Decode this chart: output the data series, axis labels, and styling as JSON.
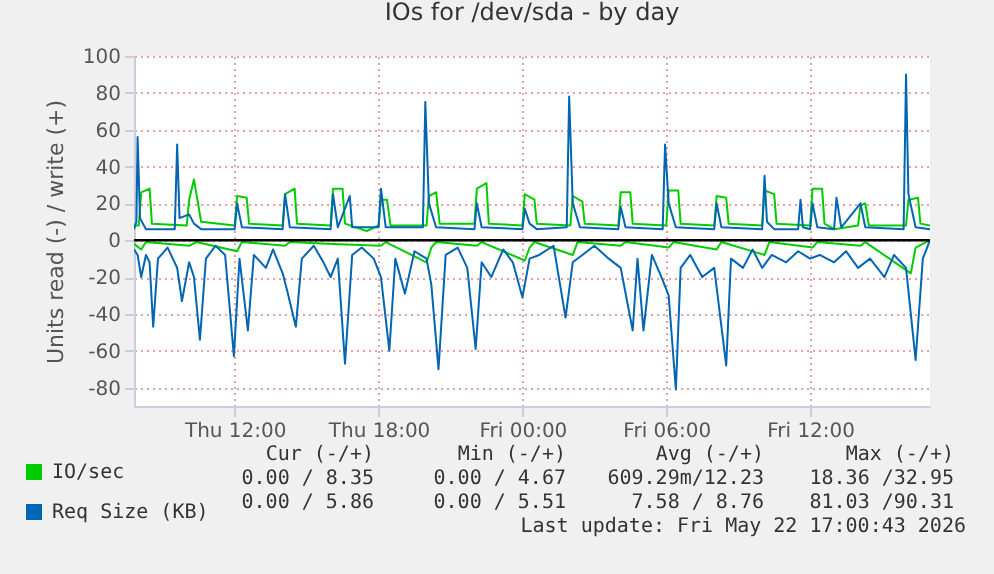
{
  "chart_data": {
    "type": "line",
    "title": "IOs for /dev/sda - by day",
    "ylabel": "Units read (-) / write (+)",
    "xlim": [
      "2026-05-21T07:48",
      "2026-05-22T17:00"
    ],
    "xticks": [
      {
        "value": "2026-05-21T12:00",
        "label": "Thu 12:00"
      },
      {
        "value": "2026-05-21T18:00",
        "label": "Thu 18:00"
      },
      {
        "value": "2026-05-22T00:00",
        "label": "Fri 00:00"
      },
      {
        "value": "2026-05-22T06:00",
        "label": "Fri 06:00"
      },
      {
        "value": "2026-05-22T12:00",
        "label": "Fri 12:00"
      }
    ],
    "ylim": [
      -90,
      100
    ],
    "yticks": [
      -80,
      -60,
      -40,
      -20,
      0,
      20,
      40,
      60,
      80,
      100
    ],
    "grid": true,
    "legend": "bottom",
    "ref_lines": [
      {
        "axis": "y",
        "value": 0,
        "color": "#000000"
      }
    ],
    "series": [
      {
        "name": "IO/sec",
        "color": "#00cc00",
        "x": [
          "2026-05-21T07:48",
          "2026-05-21T08:00",
          "2026-05-21T08:06",
          "2026-05-21T08:27",
          "2026-05-21T08:33",
          "2026-05-21T10:00",
          "2026-05-21T10:06",
          "2026-05-21T10:18",
          "2026-05-21T10:36",
          "2026-05-21T12:00",
          "2026-05-21T12:06",
          "2026-05-21T12:30",
          "2026-05-21T12:36",
          "2026-05-21T14:00",
          "2026-05-21T14:06",
          "2026-05-21T14:30",
          "2026-05-21T14:36",
          "2026-05-21T16:00",
          "2026-05-21T16:06",
          "2026-05-21T16:30",
          "2026-05-21T16:36",
          "2026-05-21T17:30",
          "2026-05-21T18:00",
          "2026-05-21T18:06",
          "2026-05-21T18:21",
          "2026-05-21T18:30",
          "2026-05-21T20:00",
          "2026-05-21T20:06",
          "2026-05-21T20:24",
          "2026-05-21T20:33",
          "2026-05-21T22:00",
          "2026-05-21T22:06",
          "2026-05-21T22:30",
          "2026-05-21T22:36",
          "2026-05-22T00:00",
          "2026-05-22T00:06",
          "2026-05-22T00:30",
          "2026-05-22T00:36",
          "2026-05-22T02:00",
          "2026-05-22T02:06",
          "2026-05-22T02:30",
          "2026-05-22T02:36",
          "2026-05-22T04:00",
          "2026-05-22T04:06",
          "2026-05-22T04:30",
          "2026-05-22T04:36",
          "2026-05-22T06:00",
          "2026-05-22T06:06",
          "2026-05-22T06:30",
          "2026-05-22T06:36",
          "2026-05-22T08:00",
          "2026-05-22T08:06",
          "2026-05-22T08:30",
          "2026-05-22T08:36",
          "2026-05-22T10:00",
          "2026-05-22T10:06",
          "2026-05-22T10:30",
          "2026-05-22T10:36",
          "2026-05-22T12:00",
          "2026-05-22T12:06",
          "2026-05-22T12:30",
          "2026-05-22T12:36",
          "2026-05-22T13:00",
          "2026-05-22T14:00",
          "2026-05-22T14:06",
          "2026-05-22T14:18",
          "2026-05-22T14:27",
          "2026-05-22T16:00",
          "2026-05-22T16:06",
          "2026-05-22T16:30",
          "2026-05-22T16:36",
          "2026-05-22T17:00"
        ],
        "values": [
          8,
          8,
          26,
          28,
          9,
          8,
          22,
          33,
          10,
          8,
          24,
          23,
          9,
          8,
          25,
          28,
          9,
          8,
          28,
          28,
          9,
          5,
          8,
          22,
          22,
          8,
          8,
          24,
          26,
          9,
          9,
          28,
          31,
          9,
          8,
          25,
          22,
          9,
          8,
          24,
          21,
          9,
          8,
          26,
          26,
          9,
          8,
          27,
          27,
          9,
          8,
          24,
          23,
          9,
          8,
          27,
          25,
          9,
          8,
          28,
          28,
          9,
          6,
          8,
          19,
          20,
          8,
          8,
          22,
          23,
          9,
          8
        ]
      },
      {
        "color": "#00cc00",
        "x": [
          "2026-05-21T07:48",
          "2026-05-21T08:06",
          "2026-05-21T08:18",
          "2026-05-21T10:06",
          "2026-05-21T10:24",
          "2026-05-21T12:06",
          "2026-05-21T12:18",
          "2026-05-21T14:06",
          "2026-05-21T14:18",
          "2026-05-21T16:06",
          "2026-05-21T18:06",
          "2026-05-21T18:18",
          "2026-05-21T20:00",
          "2026-05-21T20:12",
          "2026-05-21T20:24",
          "2026-05-21T22:06",
          "2026-05-21T22:18",
          "2026-05-22T00:06",
          "2026-05-22T00:18",
          "2026-05-22T00:30",
          "2026-05-22T02:06",
          "2026-05-22T02:18",
          "2026-05-22T04:06",
          "2026-05-22T04:18",
          "2026-05-22T06:06",
          "2026-05-22T06:18",
          "2026-05-22T08:06",
          "2026-05-22T08:18",
          "2026-05-22T10:06",
          "2026-05-22T10:18",
          "2026-05-22T12:06",
          "2026-05-22T12:18",
          "2026-05-22T14:06",
          "2026-05-22T14:18",
          "2026-05-22T16:12",
          "2026-05-22T16:24",
          "2026-05-22T17:00"
        ],
        "values": [
          -2,
          -5,
          -1,
          -3,
          -1,
          -6,
          -1,
          -3,
          -1,
          -2,
          -3,
          -1,
          -12,
          -4,
          -1,
          -3,
          -1,
          -11,
          -4,
          -1,
          -8,
          -1,
          -3,
          -1,
          -4,
          -1,
          -5,
          -1,
          -8,
          -1,
          -4,
          -1,
          -3,
          -1,
          -18,
          -4,
          0
        ]
      },
      {
        "name": "Req Size (KB)",
        "color": "#0066b3",
        "x": [
          "2026-05-21T07:48",
          "2026-05-21T07:54",
          "2026-05-21T07:57",
          "2026-05-21T08:03",
          "2026-05-21T08:18",
          "2026-05-21T09:30",
          "2026-05-21T09:36",
          "2026-05-21T09:42",
          "2026-05-21T10:06",
          "2026-05-21T10:18",
          "2026-05-21T10:36",
          "2026-05-21T12:00",
          "2026-05-21T12:06",
          "2026-05-21T12:18",
          "2026-05-21T14:00",
          "2026-05-21T14:06",
          "2026-05-21T14:18",
          "2026-05-21T16:00",
          "2026-05-21T16:06",
          "2026-05-21T16:18",
          "2026-05-21T16:48",
          "2026-05-21T16:54",
          "2026-05-21T18:00",
          "2026-05-21T18:06",
          "2026-05-21T18:18",
          "2026-05-21T19:51",
          "2026-05-21T19:57",
          "2026-05-21T20:06",
          "2026-05-21T20:24",
          "2026-05-21T22:00",
          "2026-05-21T22:06",
          "2026-05-21T22:18",
          "2026-05-22T00:00",
          "2026-05-22T00:06",
          "2026-05-22T00:18",
          "2026-05-22T00:36",
          "2026-05-22T01:51",
          "2026-05-22T01:57",
          "2026-05-22T02:06",
          "2026-05-22T02:24",
          "2026-05-22T04:00",
          "2026-05-22T04:06",
          "2026-05-22T04:18",
          "2026-05-22T05:51",
          "2026-05-22T05:57",
          "2026-05-22T06:06",
          "2026-05-22T06:24",
          "2026-05-22T08:00",
          "2026-05-22T08:06",
          "2026-05-22T08:18",
          "2026-05-22T10:00",
          "2026-05-22T10:06",
          "2026-05-22T10:12",
          "2026-05-22T10:30",
          "2026-05-22T11:30",
          "2026-05-22T11:36",
          "2026-05-22T11:42",
          "2026-05-22T12:00",
          "2026-05-22T12:06",
          "2026-05-22T12:18",
          "2026-05-22T13:00",
          "2026-05-22T13:06",
          "2026-05-22T13:18",
          "2026-05-22T14:06",
          "2026-05-22T14:18",
          "2026-05-22T15:54",
          "2026-05-22T16:00",
          "2026-05-22T16:06",
          "2026-05-22T16:24",
          "2026-05-22T17:00"
        ],
        "values": [
          6,
          10,
          56,
          12,
          6,
          6,
          52,
          12,
          14,
          9,
          6,
          6,
          20,
          7,
          6,
          25,
          7,
          6,
          25,
          7,
          24,
          7,
          7,
          28,
          7,
          7,
          75,
          20,
          7,
          6,
          20,
          7,
          6,
          17,
          9,
          6,
          7,
          78,
          20,
          7,
          6,
          18,
          7,
          6,
          52,
          20,
          7,
          6,
          20,
          7,
          6,
          35,
          10,
          6,
          6,
          22,
          7,
          6,
          20,
          7,
          6,
          23,
          7,
          20,
          7,
          6,
          90,
          25,
          7,
          6
        ]
      },
      {
        "color": "#0066b3",
        "x": [
          "2026-05-21T07:48",
          "2026-05-21T07:57",
          "2026-05-21T08:06",
          "2026-05-21T08:18",
          "2026-05-21T08:27",
          "2026-05-21T08:36",
          "2026-05-21T08:48",
          "2026-05-21T09:12",
          "2026-05-21T09:36",
          "2026-05-21T09:48",
          "2026-05-21T10:06",
          "2026-05-21T10:18",
          "2026-05-21T10:33",
          "2026-05-21T10:48",
          "2026-05-21T11:12",
          "2026-05-21T11:36",
          "2026-05-21T11:58",
          "2026-05-21T12:12",
          "2026-05-21T12:33",
          "2026-05-21T12:48",
          "2026-05-21T13:18",
          "2026-05-21T13:36",
          "2026-05-21T14:00",
          "2026-05-21T14:12",
          "2026-05-21T14:33",
          "2026-05-21T14:48",
          "2026-05-21T15:18",
          "2026-05-21T15:42",
          "2026-05-21T16:00",
          "2026-05-21T16:18",
          "2026-05-21T16:36",
          "2026-05-21T16:54",
          "2026-05-21T17:18",
          "2026-05-21T17:48",
          "2026-05-21T18:06",
          "2026-05-21T18:27",
          "2026-05-21T18:42",
          "2026-05-21T19:06",
          "2026-05-21T19:30",
          "2026-05-21T20:00",
          "2026-05-21T20:12",
          "2026-05-21T20:30",
          "2026-05-21T20:48",
          "2026-05-21T21:18",
          "2026-05-21T21:42",
          "2026-05-21T22:03",
          "2026-05-21T22:18",
          "2026-05-21T22:42",
          "2026-05-21T23:12",
          "2026-05-21T23:36",
          "2026-05-22T00:00",
          "2026-05-22T00:18",
          "2026-05-22T00:42",
          "2026-05-22T01:18",
          "2026-05-22T01:48",
          "2026-05-22T02:06",
          "2026-05-22T02:30",
          "2026-05-22T03:00",
          "2026-05-22T03:36",
          "2026-05-22T04:06",
          "2026-05-22T04:36",
          "2026-05-22T04:48",
          "2026-05-22T05:03",
          "2026-05-22T05:24",
          "2026-05-22T05:48",
          "2026-05-22T06:06",
          "2026-05-22T06:24",
          "2026-05-22T06:36",
          "2026-05-22T07:00",
          "2026-05-22T07:30",
          "2026-05-22T08:00",
          "2026-05-22T08:30",
          "2026-05-22T08:42",
          "2026-05-22T09:12",
          "2026-05-22T09:36",
          "2026-05-22T10:00",
          "2026-05-22T10:24",
          "2026-05-22T11:00",
          "2026-05-22T11:30",
          "2026-05-22T12:00",
          "2026-05-22T12:24",
          "2026-05-22T13:00",
          "2026-05-22T13:30",
          "2026-05-22T14:00",
          "2026-05-22T14:30",
          "2026-05-22T15:06",
          "2026-05-22T15:30",
          "2026-05-22T16:00",
          "2026-05-22T16:24",
          "2026-05-22T16:42",
          "2026-05-22T17:00"
        ],
        "values": [
          -5,
          -8,
          -20,
          -8,
          -12,
          -47,
          -10,
          -4,
          -15,
          -33,
          -12,
          -20,
          -54,
          -10,
          -3,
          -8,
          -63,
          -10,
          -49,
          -8,
          -15,
          -5,
          -18,
          -28,
          -47,
          -10,
          -3,
          -12,
          -20,
          -10,
          -67,
          -8,
          -4,
          -10,
          -20,
          -60,
          -10,
          -29,
          -6,
          -10,
          -24,
          -70,
          -8,
          -4,
          -15,
          -59,
          -12,
          -20,
          -5,
          -12,
          -31,
          -10,
          -8,
          -3,
          -42,
          -12,
          -8,
          -3,
          -10,
          -15,
          -49,
          -10,
          -49,
          -8,
          -20,
          -30,
          -81,
          -15,
          -8,
          -20,
          -15,
          -68,
          -10,
          -15,
          -5,
          -15,
          -8,
          -12,
          -6,
          -10,
          -8,
          -12,
          -6,
          -15,
          -10,
          -20,
          -8,
          -15,
          -65,
          -10,
          0
        ]
      }
    ],
    "annotations": [
      "Cur (-/+)",
      "Min (-/+)",
      "Avg (-/+)",
      "Max (-/+)",
      "0.00 / 8.35",
      "0.00 / 4.67",
      "609.29m/12.23",
      "18.36 /32.95",
      "0.00 / 5.86",
      "0.00 / 5.51",
      "7.58 / 8.76",
      "81.03 /90.31",
      "Last update: Fri May 22 17:00:43 2026"
    ]
  }
}
